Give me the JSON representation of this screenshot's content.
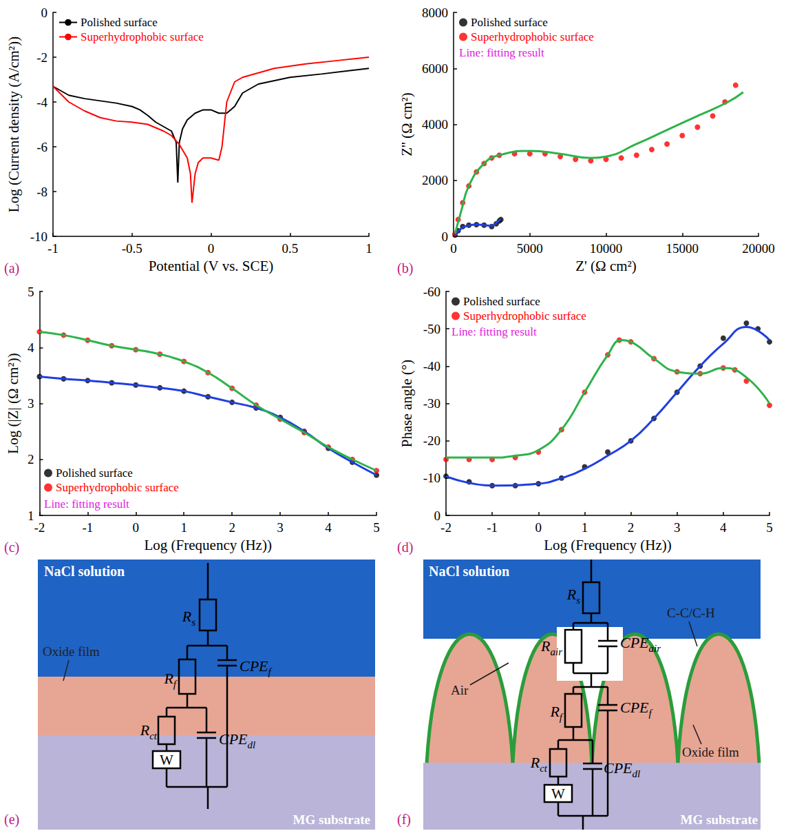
{
  "chart_data": [
    {
      "panel": "(a)",
      "type": "line",
      "x_label": "Potential (V vs. SCE)",
      "y_label": "Log (Current density (A/cm²))",
      "xlim": [
        -1,
        1
      ],
      "xticks": [
        -1,
        -0.5,
        0,
        0.5,
        1
      ],
      "ylim": [
        -10,
        0
      ],
      "yticks": [
        -10,
        -8,
        -6,
        -4,
        -2,
        0
      ],
      "legend": "upper left",
      "grid": false,
      "series": [
        {
          "name": "Polished surface",
          "color": "#000000",
          "line_style": "solid",
          "x": [
            -1,
            -0.9,
            -0.8,
            -0.7,
            -0.6,
            -0.5,
            -0.45,
            -0.4,
            -0.35,
            -0.3,
            -0.25,
            -0.22,
            -0.21,
            -0.2,
            -0.18,
            -0.15,
            -0.1,
            -0.05,
            0,
            0.05,
            0.1,
            0.15,
            0.2,
            0.3,
            0.5,
            0.7,
            1
          ],
          "values": [
            -3.3,
            -3.7,
            -3.85,
            -3.95,
            -4.05,
            -4.2,
            -4.35,
            -4.6,
            -4.9,
            -5.1,
            -5.3,
            -5.8,
            -7.6,
            -5.8,
            -5.2,
            -4.8,
            -4.5,
            -4.35,
            -4.35,
            -4.5,
            -4.5,
            -4.2,
            -3.6,
            -3.2,
            -2.9,
            -2.75,
            -2.5
          ]
        },
        {
          "name": "Superhydrophobic surface",
          "color": "#ff0000",
          "line_style": "solid",
          "x": [
            -1,
            -0.9,
            -0.8,
            -0.7,
            -0.6,
            -0.5,
            -0.4,
            -0.3,
            -0.25,
            -0.2,
            -0.15,
            -0.13,
            -0.12,
            -0.1,
            -0.08,
            -0.05,
            0,
            0.05,
            0.07,
            0.1,
            0.15,
            0.2,
            0.4,
            0.6,
            0.8,
            1
          ],
          "values": [
            -3.3,
            -4.0,
            -4.4,
            -4.7,
            -4.85,
            -4.9,
            -5.0,
            -5.3,
            -5.5,
            -5.9,
            -6.5,
            -7.2,
            -8.5,
            -7.2,
            -6.7,
            -6.5,
            -6.5,
            -6.6,
            -6.0,
            -4.0,
            -3.1,
            -2.9,
            -2.5,
            -2.3,
            -2.15,
            -2.0
          ]
        }
      ]
    },
    {
      "panel": "(b)",
      "type": "scatter",
      "x_label": "Z' (Ω cm²)",
      "y_label": "Z'' (Ω cm²)",
      "xlim": [
        0,
        20000
      ],
      "xticks": [
        0,
        5000,
        10000,
        15000,
        20000
      ],
      "ylim": [
        0,
        8000
      ],
      "yticks": [
        0,
        2000,
        4000,
        6000,
        8000
      ],
      "legend": "upper left",
      "grid": false,
      "annotation": "Line: fitting result",
      "series": [
        {
          "name": "Polished surface",
          "color": "#000000",
          "marker": "circle",
          "x": [
            100,
            300,
            600,
            1000,
            1500,
            2000,
            2500,
            2800,
            3000,
            3100
          ],
          "values": [
            50,
            200,
            350,
            400,
            420,
            400,
            350,
            450,
            550,
            600
          ]
        },
        {
          "name": "Superhydrophobic surface",
          "color": "#ff0000",
          "marker": "circle",
          "x": [
            100,
            300,
            600,
            1000,
            1500,
            2000,
            2500,
            3000,
            4000,
            5000,
            6000,
            7000,
            8000,
            9000,
            10000,
            11000,
            12000,
            13000,
            14000,
            15000,
            16000,
            17000,
            17800,
            18500
          ],
          "values": [
            100,
            600,
            1200,
            1800,
            2300,
            2600,
            2800,
            2900,
            2950,
            2950,
            2950,
            2850,
            2750,
            2700,
            2750,
            2800,
            2900,
            3100,
            3300,
            3600,
            3900,
            4300,
            4800,
            5400
          ]
        },
        {
          "type": "line",
          "color": "#1f3fe0",
          "line_style": "solid",
          "x": [
            100,
            500,
            1000,
            1500,
            2000,
            2500,
            2800,
            3100
          ],
          "values": [
            50,
            280,
            390,
            420,
            400,
            380,
            480,
            620
          ]
        },
        {
          "type": "line",
          "color": "#2db34a",
          "line_style": "solid",
          "x": [
            100,
            500,
            1000,
            2000,
            3000,
            5000,
            7000,
            9000,
            10000,
            12000,
            14000,
            16000,
            18000,
            19000
          ],
          "values": [
            100,
            900,
            1800,
            2600,
            2900,
            3050,
            2950,
            2800,
            2850,
            3300,
            3800,
            4300,
            4800,
            5150
          ]
        }
      ]
    },
    {
      "panel": "(c)",
      "type": "scatter",
      "x_label": "Log (Frequency (Hz))",
      "y_label": "Log (|Z| (Ω cm²))",
      "xlim": [
        -2,
        5
      ],
      "xticks": [
        -2,
        -1,
        0,
        1,
        2,
        3,
        4,
        5
      ],
      "ylim": [
        1,
        5
      ],
      "yticks": [
        1,
        2,
        3,
        4,
        5
      ],
      "legend": "lower left",
      "grid": false,
      "annotation": "Line: fitting result",
      "series": [
        {
          "name": "Polished surface",
          "color": "#000000",
          "marker": "circle",
          "x": [
            -2,
            -1.5,
            -1,
            -0.5,
            0,
            0.5,
            1,
            1.5,
            2,
            2.5,
            3,
            3.5,
            4,
            4.5,
            5
          ],
          "values": [
            3.48,
            3.44,
            3.41,
            3.37,
            3.33,
            3.28,
            3.22,
            3.12,
            3.02,
            2.92,
            2.75,
            2.5,
            2.2,
            1.95,
            1.72
          ]
        },
        {
          "name": "Superhydrophobic surface",
          "color": "#ff0000",
          "marker": "circle",
          "x": [
            -2,
            -1.5,
            -1,
            -0.5,
            0,
            0.5,
            1,
            1.5,
            2,
            2.5,
            3,
            3.5,
            4,
            4.5,
            5
          ],
          "values": [
            4.28,
            4.22,
            4.13,
            4.03,
            3.96,
            3.88,
            3.75,
            3.55,
            3.27,
            2.97,
            2.72,
            2.48,
            2.22,
            2.0,
            1.8
          ]
        },
        {
          "type": "line",
          "color": "#1f3fe0",
          "line_style": "solid",
          "x": [
            -2,
            -1.5,
            -1,
            -0.5,
            0,
            0.5,
            1,
            1.5,
            2,
            2.5,
            3,
            3.5,
            4,
            4.5,
            5
          ],
          "values": [
            3.48,
            3.44,
            3.41,
            3.37,
            3.33,
            3.28,
            3.22,
            3.12,
            3.02,
            2.92,
            2.75,
            2.5,
            2.2,
            1.95,
            1.72
          ]
        },
        {
          "type": "line",
          "color": "#2db34a",
          "line_style": "solid",
          "x": [
            -2,
            -1.5,
            -1,
            -0.5,
            0,
            0.5,
            1,
            1.5,
            2,
            2.5,
            3,
            3.5,
            4,
            4.5,
            5
          ],
          "values": [
            4.28,
            4.22,
            4.13,
            4.03,
            3.96,
            3.88,
            3.75,
            3.55,
            3.27,
            2.97,
            2.72,
            2.48,
            2.22,
            2.0,
            1.8
          ]
        }
      ]
    },
    {
      "panel": "(d)",
      "type": "scatter",
      "x_label": "Log (Frequency (Hz))",
      "y_label": "Phase angle (°)",
      "xlim": [
        -2,
        5
      ],
      "xticks": [
        -2,
        -1,
        0,
        1,
        2,
        3,
        4,
        5
      ],
      "ylim": [
        0,
        -60
      ],
      "yticks": [
        0,
        -10,
        -20,
        -30,
        -40,
        -50,
        -60
      ],
      "legend": "upper left",
      "grid": false,
      "annotation": "Line: fitting result",
      "series": [
        {
          "name": "Polished surface",
          "color": "#000000",
          "marker": "circle",
          "x": [
            -2,
            -1.5,
            -1,
            -0.5,
            0,
            0.5,
            1,
            1.5,
            2,
            2.5,
            3,
            3.5,
            4,
            4.5,
            4.75,
            5
          ],
          "values": [
            -10.5,
            -9,
            -8,
            -8,
            -8.5,
            -10,
            -13,
            -17,
            -20,
            -26,
            -33,
            -40,
            -47.5,
            -51.5,
            -50,
            -46.5
          ]
        },
        {
          "name": "Superhydrophobic surface",
          "color": "#ff0000",
          "marker": "circle",
          "x": [
            -2,
            -1.5,
            -1,
            -0.5,
            0,
            0.5,
            1,
            1.5,
            1.75,
            2,
            2.5,
            3,
            3.5,
            4,
            4.25,
            4.5,
            5
          ],
          "values": [
            -15,
            -15,
            -15,
            -15.5,
            -17,
            -23,
            -33,
            -43,
            -47,
            -46.5,
            -42,
            -38.5,
            -38,
            -39.5,
            -39,
            -36,
            -29.5
          ]
        },
        {
          "type": "line",
          "color": "#1f3fe0",
          "line_style": "solid",
          "x": [
            -2,
            -1,
            0,
            0.5,
            1,
            1.5,
            2,
            2.5,
            3,
            3.5,
            4,
            4.5,
            5
          ],
          "values": [
            -10.5,
            -8,
            -8.5,
            -10,
            -12.5,
            -16,
            -20,
            -26,
            -33,
            -40,
            -46,
            -50.5,
            -47
          ]
        },
        {
          "type": "line",
          "color": "#2db34a",
          "line_style": "solid",
          "x": [
            -2,
            -1,
            -0.5,
            0,
            0.5,
            1,
            1.5,
            1.8,
            2,
            2.5,
            3,
            3.5,
            4,
            4.5,
            5
          ],
          "values": [
            -15.5,
            -15.5,
            -16,
            -17.5,
            -23,
            -33,
            -43,
            -47,
            -46.5,
            -42,
            -38.5,
            -38,
            -39.5,
            -37,
            -30
          ]
        }
      ]
    }
  ],
  "diagrams": [
    {
      "panel": "(e)",
      "labels": {
        "solution": "NaCl solution",
        "film": "Oxide film",
        "substrate": "MG substrate"
      },
      "components": {
        "Rs": {
          "symbol": "R",
          "sub": "s"
        },
        "Rf": {
          "symbol": "R",
          "sub": "f"
        },
        "CPEf": {
          "symbol": "CPE",
          "sub": "f"
        },
        "Rct": {
          "symbol": "R",
          "sub": "ct"
        },
        "CPEdl": {
          "symbol": "CPE",
          "sub": "dl"
        },
        "W": {
          "symbol": "W"
        }
      }
    },
    {
      "panel": "(f)",
      "labels": {
        "solution": "NaCl solution",
        "coating": "C-C/C-H",
        "air": "Air",
        "film": "Oxide film",
        "substrate": "MG substrate"
      },
      "components": {
        "Rs": {
          "symbol": "R",
          "sub": "s"
        },
        "Rair": {
          "symbol": "R",
          "sub": "air"
        },
        "CPEair": {
          "symbol": "CPE",
          "sub": "air"
        },
        "Rf": {
          "symbol": "R",
          "sub": "f"
        },
        "CPEf": {
          "symbol": "CPE",
          "sub": "f"
        },
        "Rct": {
          "symbol": "R",
          "sub": "ct"
        },
        "CPEdl": {
          "symbol": "CPE",
          "sub": "dl"
        },
        "W": {
          "symbol": "W"
        }
      }
    }
  ]
}
